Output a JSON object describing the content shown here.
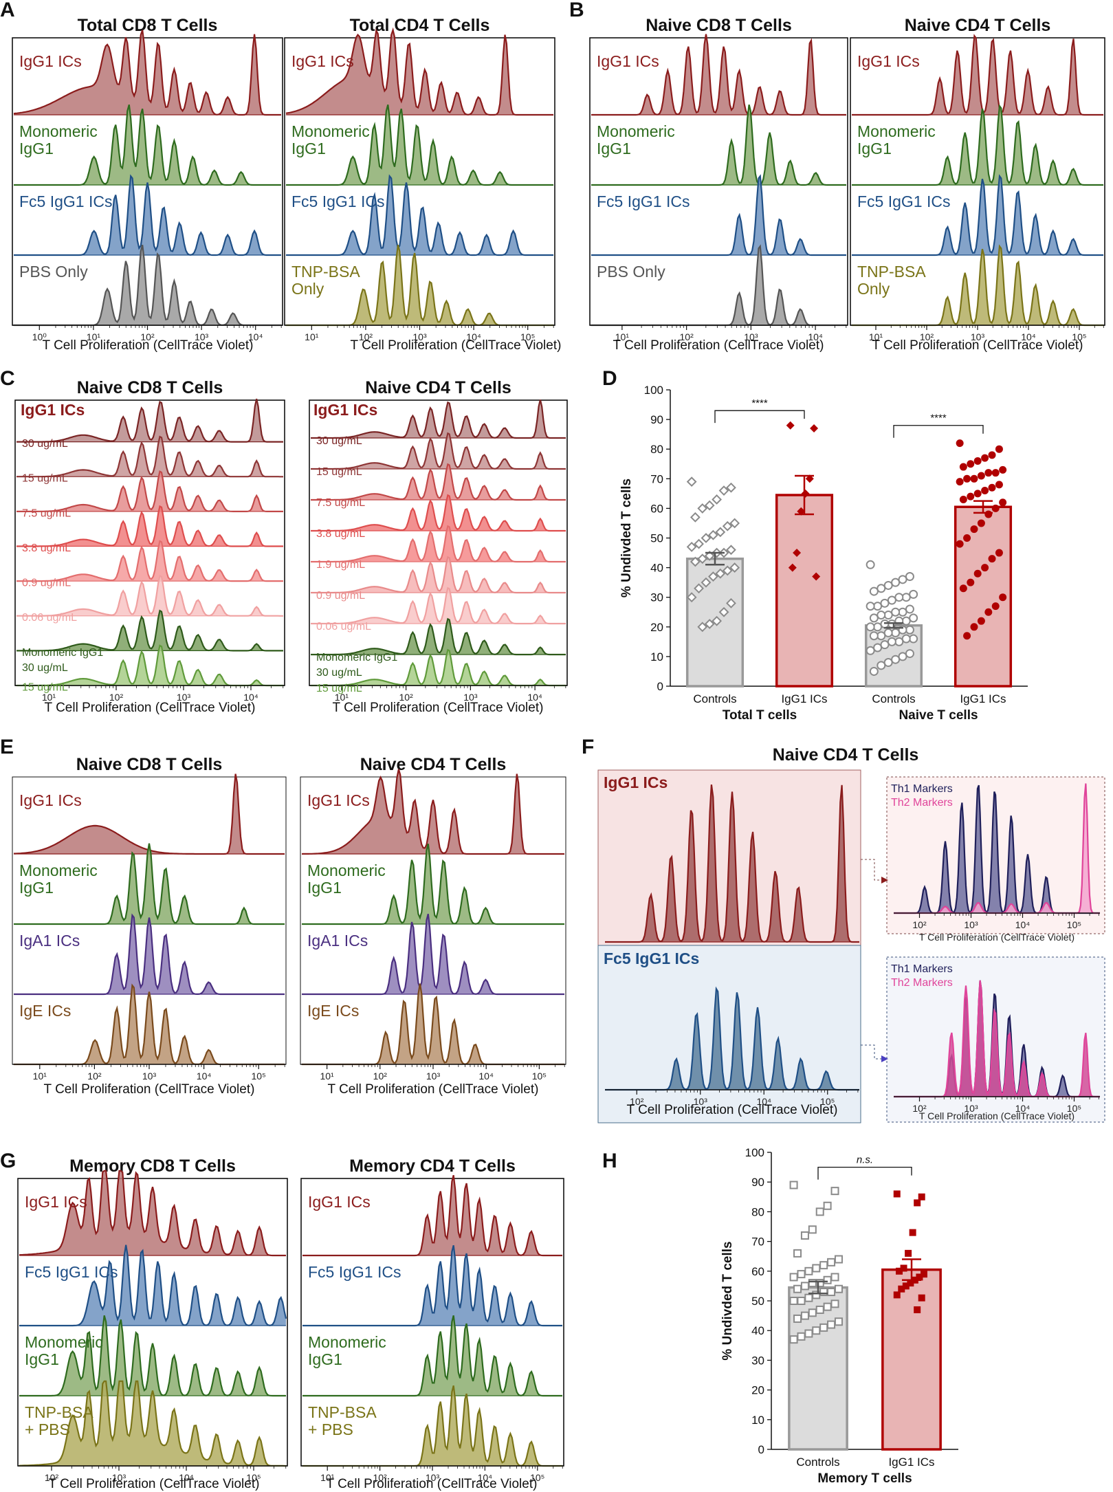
{
  "colors": {
    "igg1": "#8b1c1c",
    "igg1_fill": "#b87878",
    "monomeric": "#2e6b1e",
    "monomeric_fill": "#8cae70",
    "fc5": "#1f4f86",
    "fc5_fill": "#6f93bf",
    "pbs": "#555555",
    "pbs_fill": "#9a9a9a",
    "tnp": "#7a7418",
    "tnp_fill": "#b3ae62",
    "iga1": "#4a2f80",
    "iga1_fill": "#8d7bb5",
    "ige": "#7a4a1c",
    "ige_fill": "#b89370",
    "th1": "#1f1f5a",
    "th2": "#e0449a",
    "bar_control": "#dcdcdc",
    "bar_control_edge": "#999999",
    "bar_igg1": "#e8b4b4",
    "bar_igg1_edge": "#b00000"
  },
  "shared": {
    "xlabel": "T Cell Proliferation (CellTrace Violet)"
  },
  "panels": {
    "A": {
      "label": "A",
      "left_title": "Total CD8 T Cells",
      "right_title": "Total CD4 T Cells",
      "left_rows": [
        "IgG1 ICs",
        "Monomeric\nIgG1",
        "Fc5 IgG1 ICs",
        "PBS Only"
      ],
      "right_rows": [
        "IgG1 ICs",
        "Monomeric\nIgG1",
        "Fc5 IgG1 ICs",
        "TNP-BSA\nOnly"
      ],
      "left_ticks": [
        "10⁰",
        "10¹",
        "10²",
        "10³",
        "10⁴"
      ],
      "right_ticks": [
        "10¹",
        "10²",
        "10³",
        "10⁴",
        "10⁵"
      ]
    },
    "B": {
      "label": "B",
      "left_title": "Naive CD8 T Cells",
      "right_title": "Naive CD4 T Cells",
      "left_rows": [
        "IgG1 ICs",
        "Monomeric\nIgG1",
        "Fc5 IgG1 ICs",
        "PBS Only"
      ],
      "right_rows": [
        "IgG1 ICs",
        "Monomeric\nIgG1",
        "Fc5 IgG1 ICs",
        "TNP-BSA\nOnly"
      ],
      "left_ticks": [
        "10¹",
        "10²",
        "10³",
        "10⁴"
      ],
      "right_ticks": [
        "10¹",
        "10²",
        "10³",
        "10⁴",
        "10⁵"
      ]
    },
    "C": {
      "label": "C",
      "left_title": "Naive CD8 T Cells",
      "right_title": "Naive CD4 T Cells",
      "header": "IgG1 ICs",
      "left_rows": [
        "30 ug/mL",
        "15 ug/mL",
        "7.5 ug/mL",
        "3.8 ug/mL",
        "0.9 ug/mL",
        "0.06 ug/mL",
        "Monomeric IgG1\n30 ug/mL",
        "15 ug/mL"
      ],
      "right_rows": [
        "30 ug/mL",
        "15 ug/mL",
        "7.5 ug/mL",
        "3.8 ug/mL",
        "1.9 ug/mL",
        "0.9 ug/mL",
        "0.06 ug/mL",
        "Monomeric IgG1\n30 ug/mL",
        "15 ug/mL"
      ],
      "left_ticks": [
        "10¹",
        "10²",
        "10³",
        "10⁴"
      ],
      "right_ticks": [
        "10¹",
        "10²",
        "10³",
        "10⁴"
      ]
    },
    "E": {
      "label": "E",
      "left_title": "Naive CD8 T Cells",
      "right_title": "Naive CD4 T Cells",
      "left_rows": [
        "IgG1 ICs",
        "Monomeric\nIgG1",
        "IgA1 ICs",
        "IgE ICs"
      ],
      "right_rows": [
        "IgG1 ICs",
        "Monomeric\nIgG1",
        "IgA1 ICs",
        "IgE ICs"
      ],
      "left_ticks": [
        "10¹",
        "10²",
        "10³",
        "10⁴",
        "10⁵"
      ],
      "right_ticks": [
        "10¹",
        "10²",
        "10³",
        "10⁴",
        "10⁵"
      ]
    },
    "F": {
      "label": "F",
      "title": "Naive CD4 T Cells",
      "top_row": "IgG1 ICs",
      "bottom_row": "Fc5 IgG1 ICs",
      "legend_th1": "Th1 Markers",
      "legend_th2": "Th2  Markers",
      "main_ticks": [
        "10²",
        "10³",
        "10⁴",
        "10⁵"
      ],
      "inset_ticks": [
        "10²",
        "10³",
        "10⁴",
        "10⁵"
      ]
    },
    "G": {
      "label": "G",
      "left_title": "Memory CD8 T Cells",
      "right_title": "Memory CD4 T Cells",
      "left_rows": [
        "IgG1 ICs",
        "Fc5 IgG1 ICs",
        "Monomeric\nIgG1",
        "TNP-BSA\n+ PBS"
      ],
      "right_rows": [
        "IgG1 ICs",
        "Fc5 IgG1 ICs",
        "Monomeric\nIgG1",
        "TNP-BSA\n+ PBS"
      ],
      "left_ticks": [
        "10²",
        "10³",
        "10⁴",
        "10⁵"
      ],
      "right_ticks": [
        "10¹",
        "10²",
        "10³",
        "10⁴",
        "10⁵"
      ]
    }
  },
  "chart_data": [
    {
      "type": "bar",
      "panel": "D",
      "title": "",
      "ylabel": "% Undivded  T cells",
      "ylim": [
        0,
        100
      ],
      "yticks": [
        0,
        10,
        20,
        30,
        40,
        50,
        60,
        70,
        80,
        90,
        100
      ],
      "categories": [
        "Controls",
        "IgG1 ICs",
        "Controls",
        "IgG1 ICs"
      ],
      "groups": [
        "Total  T cells",
        "Naive  T cells"
      ],
      "values": [
        43,
        64.5,
        20.5,
        60.5
      ],
      "sem": [
        2,
        6.5,
        0.8,
        2
      ],
      "significance": [
        "****",
        "****"
      ],
      "points": [
        [
          69,
          67,
          66,
          63,
          61,
          60,
          57,
          55,
          54,
          52,
          51,
          50,
          48,
          47,
          46,
          45,
          45,
          44,
          43,
          42,
          40,
          39,
          38,
          37,
          35,
          33,
          30,
          28,
          25,
          22,
          21,
          20
        ],
        [
          88,
          87,
          70,
          65,
          59,
          45,
          40,
          37
        ],
        [
          41,
          37,
          36,
          35,
          34,
          33,
          32,
          31,
          30,
          30,
          29,
          28,
          27,
          27,
          26,
          25,
          25,
          24,
          24,
          23,
          23,
          22,
          22,
          21,
          21,
          20,
          20,
          19,
          19,
          18,
          18,
          17,
          17,
          16,
          16,
          15,
          15,
          14,
          13,
          12,
          11,
          10,
          9,
          8,
          7,
          5
        ],
        [
          82,
          80,
          78,
          77,
          76,
          75,
          74,
          73,
          72,
          72,
          71,
          70,
          70,
          69,
          68,
          67,
          66,
          65,
          64,
          63,
          62,
          60,
          58,
          55,
          53,
          50,
          48,
          45,
          43,
          40,
          38,
          35,
          33,
          30,
          27,
          25,
          22,
          20,
          17
        ]
      ]
    },
    {
      "type": "bar",
      "panel": "H",
      "title": "",
      "ylabel": "% Undivded  T cells",
      "ylim": [
        0,
        100
      ],
      "yticks": [
        0,
        10,
        20,
        30,
        40,
        50,
        60,
        70,
        80,
        90,
        100
      ],
      "categories": [
        "Controls",
        "IgG1 ICs"
      ],
      "groups": [
        "Memory  T cells"
      ],
      "values": [
        54.5,
        60.5
      ],
      "sem": [
        2,
        3.5
      ],
      "significance": [
        "n.s."
      ],
      "points": [
        [
          89,
          87,
          82,
          80,
          74,
          72,
          66,
          64,
          63,
          62,
          61,
          60,
          59,
          58,
          58,
          57,
          56,
          56,
          55,
          54,
          54,
          53,
          53,
          52,
          51,
          50,
          50,
          49,
          48,
          47,
          46,
          45,
          44,
          43,
          42,
          41,
          40,
          39,
          38,
          37
        ],
        [
          86,
          85,
          83,
          73,
          66,
          61,
          60,
          59,
          58,
          57,
          56,
          55,
          54,
          52,
          51,
          47
        ]
      ]
    }
  ]
}
